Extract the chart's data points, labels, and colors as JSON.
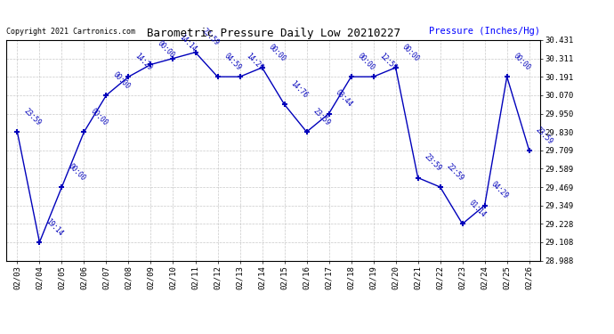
{
  "title": "Barometric Pressure Daily Low 20210227",
  "ylabel": "Pressure (Inches/Hg)",
  "copyright": "Copyright 2021 Cartronics.com",
  "line_color": "#0000BB",
  "marker_color": "#0000BB",
  "background_color": "#ffffff",
  "grid_color": "#bbbbbb",
  "x_labels": [
    "02/03",
    "02/04",
    "02/05",
    "02/06",
    "02/07",
    "02/08",
    "02/09",
    "02/10",
    "02/11",
    "02/12",
    "02/13",
    "02/14",
    "02/15",
    "02/16",
    "02/17",
    "02/18",
    "02/19",
    "02/20",
    "02/21",
    "02/22",
    "02/23",
    "02/24",
    "02/25",
    "02/26"
  ],
  "x_indices": [
    0,
    1,
    2,
    3,
    4,
    5,
    6,
    7,
    8,
    9,
    10,
    11,
    12,
    13,
    14,
    15,
    16,
    17,
    18,
    19,
    20,
    21,
    22,
    23
  ],
  "y_values": [
    29.83,
    29.108,
    29.469,
    29.83,
    30.07,
    30.191,
    30.271,
    30.311,
    30.351,
    30.191,
    30.191,
    30.251,
    30.01,
    29.83,
    29.95,
    30.191,
    30.191,
    30.251,
    29.53,
    29.469,
    29.228,
    29.349,
    30.191,
    29.709
  ],
  "point_labels": [
    "23:59",
    "19:14",
    "00:00",
    "00:00",
    "00:00",
    "14:29",
    "00:00",
    "14:14",
    "23:59",
    "04:59",
    "14:29",
    "00:00",
    "14:76",
    "23:59",
    "03:44",
    "00:00",
    "12:59",
    "00:00",
    "23:59",
    "22:59",
    "01:14",
    "04:29",
    "00:00",
    "23:59"
  ],
  "ylim": [
    28.988,
    30.431
  ],
  "y_ticks": [
    28.988,
    29.108,
    29.228,
    29.349,
    29.469,
    29.589,
    29.709,
    29.83,
    29.95,
    30.07,
    30.191,
    30.311,
    30.431
  ]
}
